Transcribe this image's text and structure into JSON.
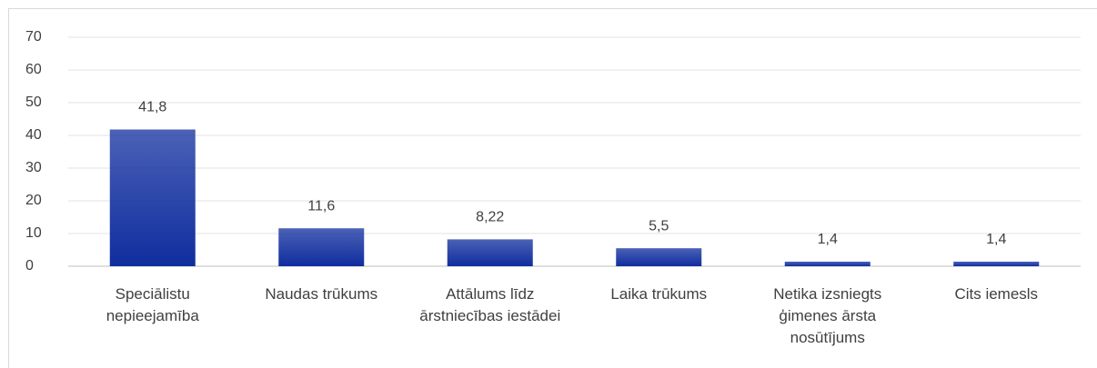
{
  "chart_data": {
    "type": "bar",
    "categories": [
      "Speciālistu nepieejamība",
      "Naudas trūkums",
      "Attālums līdz ārstniecības iestādei",
      "Laika trūkums",
      "Netika izsniegts ģimenes ārsta nosūtījums",
      "Cits iemesls"
    ],
    "values": [
      41.8,
      11.6,
      8.22,
      5.5,
      1.4,
      1.4
    ],
    "value_labels": [
      "41,8",
      "11,6",
      "8,22",
      "5,5",
      "1,4",
      "1,4"
    ],
    "color": "#0f2d9e",
    "ylim": [
      0,
      70
    ],
    "yticks": [
      0,
      10,
      20,
      30,
      40,
      50,
      60,
      70
    ],
    "grid": true
  }
}
